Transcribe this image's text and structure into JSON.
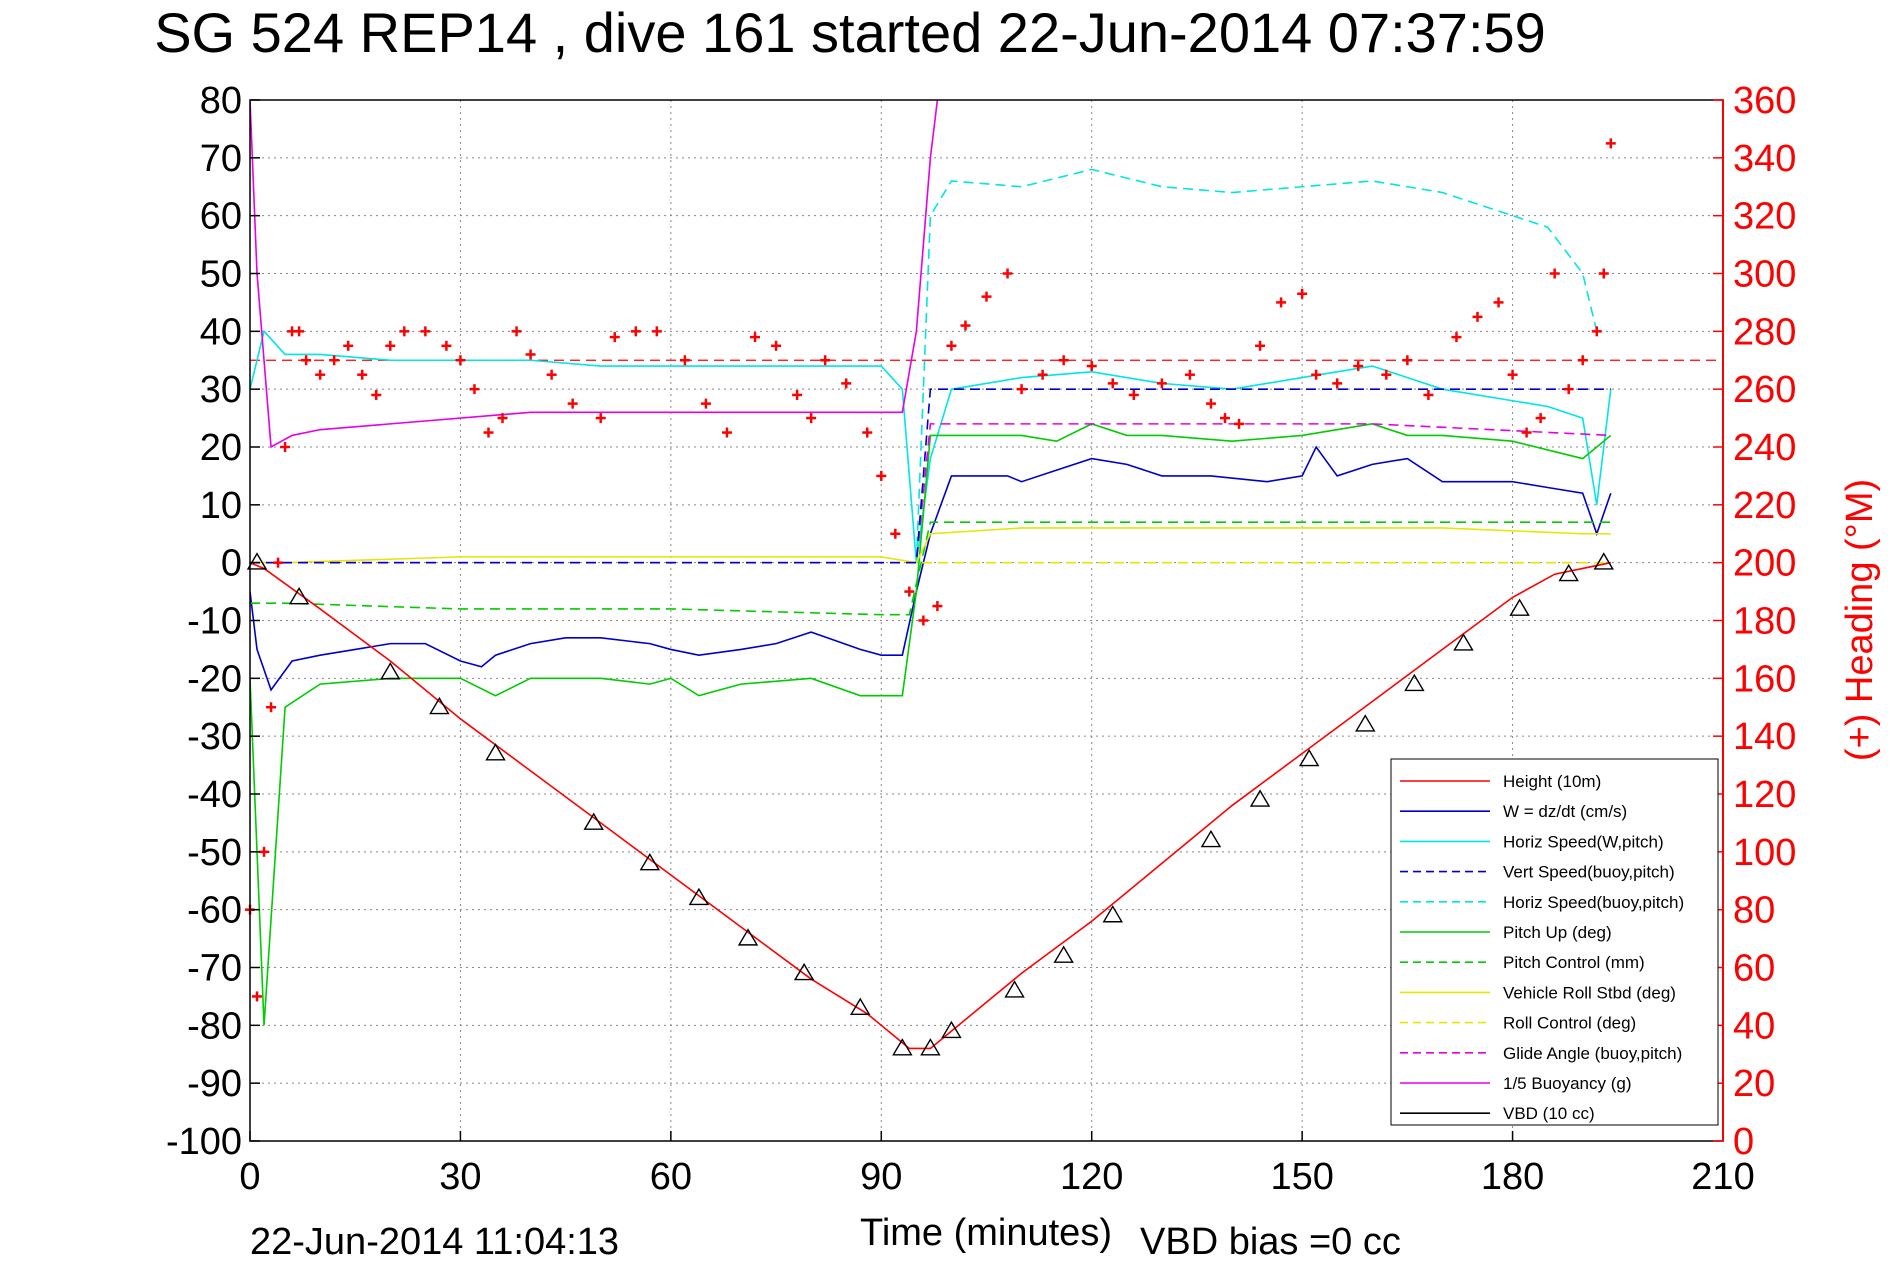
{
  "chart_data": {
    "type": "line",
    "title": "SG 524   REP14  , dive 161 started 22-Jun-2014 07:37:59",
    "xlabel": "Time (minutes)",
    "ylabel_right": "(+) Heading (°M)",
    "footer_left": "22-Jun-2014 11:04:13",
    "footer_right": "VBD bias =0 cc",
    "xlim": [
      0,
      210
    ],
    "ylim": [
      -100,
      80
    ],
    "ylim_right": [
      0,
      360
    ],
    "x_ticks": [
      0,
      30,
      60,
      90,
      120,
      150,
      180,
      210
    ],
    "x_tick_labels": [
      "0",
      "30",
      "60",
      "90",
      "120",
      "150",
      "180",
      "210"
    ],
    "y_ticks": [
      80,
      70,
      60,
      50,
      40,
      30,
      20,
      10,
      0,
      -10,
      -20,
      -30,
      -40,
      -50,
      -60,
      -70,
      -80,
      -90,
      -100
    ],
    "y_tick_labels": [
      "80",
      "70",
      "60",
      "50",
      "40",
      "30",
      "20",
      "10",
      "0",
      "-10",
      "-20",
      "-30",
      "-40",
      "-50",
      "-60",
      "-70",
      "-80",
      "-90",
      "-100"
    ],
    "y_right_ticks": [
      360,
      340,
      320,
      300,
      280,
      260,
      240,
      220,
      200,
      180,
      160,
      140,
      120,
      100,
      80,
      60,
      40,
      20,
      0
    ],
    "y_right_tick_labels": [
      "360",
      "340",
      "320",
      "300",
      "280",
      "260",
      "240",
      "220",
      "200",
      "180",
      "160",
      "140",
      "120",
      "100",
      "80",
      "60",
      "40",
      "20",
      "0"
    ],
    "grid": true,
    "legend_position": "bottom-right",
    "colors": {
      "red": "#ff0000",
      "blue": "#0000cc",
      "cyan": "#00e5e5",
      "green": "#00cc00",
      "yellow": "#e6e600",
      "magenta": "#e600e6",
      "black": "#000000"
    },
    "series": [
      {
        "name": "Height (10m)",
        "color": "red",
        "style": "solid",
        "x": [
          0,
          2,
          10,
          20,
          30,
          40,
          50,
          60,
          70,
          80,
          88,
          94,
          97,
          100,
          110,
          120,
          130,
          140,
          150,
          160,
          170,
          180,
          186,
          190,
          194
        ],
        "y": [
          0,
          -1,
          -8,
          -17,
          -27,
          -36,
          -45,
          -54,
          -63,
          -72,
          -78,
          -84,
          -84,
          -81,
          -71,
          -62,
          -52,
          -42,
          -33,
          -24,
          -15,
          -6,
          -2,
          -1,
          0
        ]
      },
      {
        "name": "W = dz/dt (cm/s)",
        "color": "blue",
        "style": "solid",
        "x": [
          0,
          1,
          3,
          6,
          10,
          15,
          20,
          25,
          30,
          33,
          35,
          40,
          45,
          50,
          57,
          60,
          64,
          70,
          75,
          80,
          87,
          90,
          93,
          95,
          97,
          100,
          105,
          108,
          110,
          115,
          120,
          125,
          130,
          137,
          145,
          150,
          152,
          155,
          160,
          165,
          170,
          175,
          180,
          185,
          190,
          192,
          194
        ],
        "y": [
          -5,
          -15,
          -22,
          -17,
          -16,
          -15,
          -14,
          -14,
          -17,
          -18,
          -16,
          -14,
          -13,
          -13,
          -14,
          -15,
          -16,
          -15,
          -14,
          -12,
          -15,
          -16,
          -16,
          -5,
          5,
          15,
          15,
          15,
          14,
          16,
          18,
          17,
          15,
          15,
          14,
          15,
          20,
          15,
          17,
          18,
          14,
          14,
          14,
          13,
          12,
          5,
          12
        ]
      },
      {
        "name": "Horiz Speed(W,pitch)",
        "color": "cyan",
        "style": "solid",
        "x": [
          0,
          2,
          5,
          10,
          20,
          30,
          40,
          50,
          60,
          70,
          80,
          90,
          93,
          95,
          97,
          100,
          110,
          120,
          130,
          140,
          150,
          160,
          170,
          180,
          185,
          190,
          192,
          194
        ],
        "y": [
          30,
          40,
          36,
          36,
          35,
          35,
          35,
          34,
          34,
          34,
          34,
          34,
          30,
          0,
          18,
          30,
          32,
          33,
          31,
          30,
          32,
          34,
          30,
          28,
          27,
          25,
          10,
          30
        ]
      },
      {
        "name": "Vert Speed(buoy,pitch)",
        "color": "blue",
        "style": "dashed",
        "x": [
          0,
          5,
          95,
          97,
          194
        ],
        "y": [
          0,
          0,
          0,
          30,
          30
        ]
      },
      {
        "name": "Horiz Speed(buoy,pitch)",
        "color": "cyan",
        "style": "dashed",
        "x": [
          95,
          97,
          100,
          110,
          120,
          130,
          140,
          150,
          160,
          170,
          180,
          185,
          190,
          192
        ],
        "y": [
          0,
          60,
          66,
          65,
          68,
          65,
          64,
          65,
          66,
          64,
          60,
          58,
          50,
          40
        ]
      },
      {
        "name": "Pitch Up (deg)",
        "color": "green",
        "style": "solid",
        "x": [
          0,
          2,
          5,
          10,
          20,
          30,
          35,
          40,
          50,
          57,
          60,
          64,
          70,
          80,
          87,
          93,
          95,
          97,
          100,
          110,
          115,
          120,
          125,
          130,
          140,
          150,
          160,
          165,
          170,
          180,
          190,
          194
        ],
        "y": [
          -20,
          -80,
          -25,
          -21,
          -20,
          -20,
          -23,
          -20,
          -20,
          -21,
          -20,
          -23,
          -21,
          -20,
          -23,
          -23,
          -5,
          22,
          22,
          22,
          21,
          24,
          22,
          22,
          21,
          22,
          24,
          22,
          22,
          21,
          18,
          22
        ]
      },
      {
        "name": "Pitch Control (mm)",
        "color": "green",
        "style": "dashed",
        "x": [
          0,
          5,
          30,
          60,
          90,
          94,
          97,
          194
        ],
        "y": [
          -7,
          -7,
          -8,
          -8,
          -9,
          -9,
          7,
          7
        ]
      },
      {
        "name": "Vehicle Roll Stbd (deg)",
        "color": "yellow",
        "style": "solid",
        "x": [
          0,
          5,
          30,
          60,
          90,
          95,
          97,
          110,
          130,
          150,
          170,
          190,
          194
        ],
        "y": [
          0,
          0,
          1,
          1,
          1,
          0,
          5,
          6,
          6,
          6,
          6,
          5,
          5
        ]
      },
      {
        "name": "Roll Control (deg)",
        "color": "yellow",
        "style": "dashed",
        "x": [
          0,
          5,
          50,
          95,
          97,
          194
        ],
        "y": [
          0,
          0,
          0,
          0,
          0,
          0
        ]
      },
      {
        "name": "Glide Angle (buoy,pitch)",
        "color": "magenta",
        "style": "dashed",
        "x": [
          0,
          5,
          95,
          97,
          120,
          160,
          194
        ],
        "y": [
          0,
          0,
          0,
          24,
          24,
          24,
          22
        ]
      },
      {
        "name": "1/5 Buoyancy (g)",
        "color": "magenta",
        "style": "solid",
        "x": [
          0,
          1,
          3,
          6,
          10,
          20,
          40,
          60,
          80,
          92,
          93,
          95,
          97,
          98
        ],
        "y": [
          80,
          50,
          20,
          22,
          23,
          24,
          26,
          26,
          26,
          26,
          26,
          40,
          70,
          80
        ]
      },
      {
        "name": "VBD (10 cc)",
        "color": "black",
        "style": "solid",
        "x": [
          0,
          1,
          2,
          5,
          93,
          95,
          97,
          100,
          193,
          194
        ],
        "y": [
          30,
          0,
          -19,
          -19,
          -19,
          -10,
          5,
          19,
          19,
          30
        ]
      }
    ],
    "heading_series": {
      "name": "(+) Heading",
      "color": "red",
      "marker": "+",
      "axis": "right",
      "x": [
        0,
        1,
        2,
        3,
        4,
        5,
        6,
        7,
        8,
        10,
        12,
        14,
        16,
        18,
        20,
        22,
        25,
        28,
        30,
        32,
        34,
        36,
        38,
        40,
        43,
        46,
        50,
        52,
        55,
        58,
        62,
        65,
        68,
        72,
        75,
        78,
        80,
        82,
        85,
        88,
        90,
        92,
        94,
        96,
        98,
        100,
        102,
        105,
        108,
        110,
        113,
        116,
        120,
        123,
        126,
        130,
        134,
        137,
        139,
        141,
        144,
        147,
        150,
        152,
        155,
        158,
        162,
        165,
        168,
        172,
        175,
        178,
        180,
        182,
        184,
        186,
        188,
        190,
        192,
        193,
        194
      ],
      "y": [
        80,
        50,
        100,
        150,
        200,
        240,
        280,
        280,
        270,
        265,
        270,
        275,
        265,
        258,
        275,
        280,
        280,
        275,
        270,
        260,
        245,
        250,
        280,
        272,
        265,
        255,
        250,
        278,
        280,
        280,
        270,
        255,
        245,
        278,
        275,
        258,
        250,
        270,
        262,
        245,
        230,
        210,
        190,
        180,
        185,
        275,
        282,
        292,
        300,
        260,
        265,
        270,
        268,
        262,
        258,
        262,
        265,
        255,
        250,
        248,
        275,
        290,
        293,
        265,
        262,
        268,
        265,
        270,
        258,
        278,
        285,
        290,
        265,
        245,
        250,
        300,
        260,
        270,
        280,
        300,
        345
      ]
    },
    "reference_lines": [
      {
        "axis": "right",
        "y": 270,
        "color": "red",
        "style": "dashed"
      },
      {
        "axis": "right",
        "y": 200,
        "color": "red",
        "style": "dashed",
        "x_end": 95
      }
    ],
    "sample_markers": {
      "color": "black",
      "x": [
        1,
        7,
        20,
        27,
        35,
        49,
        57,
        64,
        71,
        79,
        87,
        93,
        97,
        100,
        109,
        116,
        123,
        137,
        144,
        151,
        159,
        166,
        173,
        181,
        188,
        193
      ],
      "y": [
        0,
        -6,
        -19,
        -25,
        -33,
        -45,
        -52,
        -58,
        -65,
        -71,
        -77,
        -84,
        -84,
        -81,
        -74,
        -68,
        -61,
        -48,
        -41,
        -34,
        -28,
        -21,
        -14,
        -8,
        -2,
        0
      ]
    }
  }
}
